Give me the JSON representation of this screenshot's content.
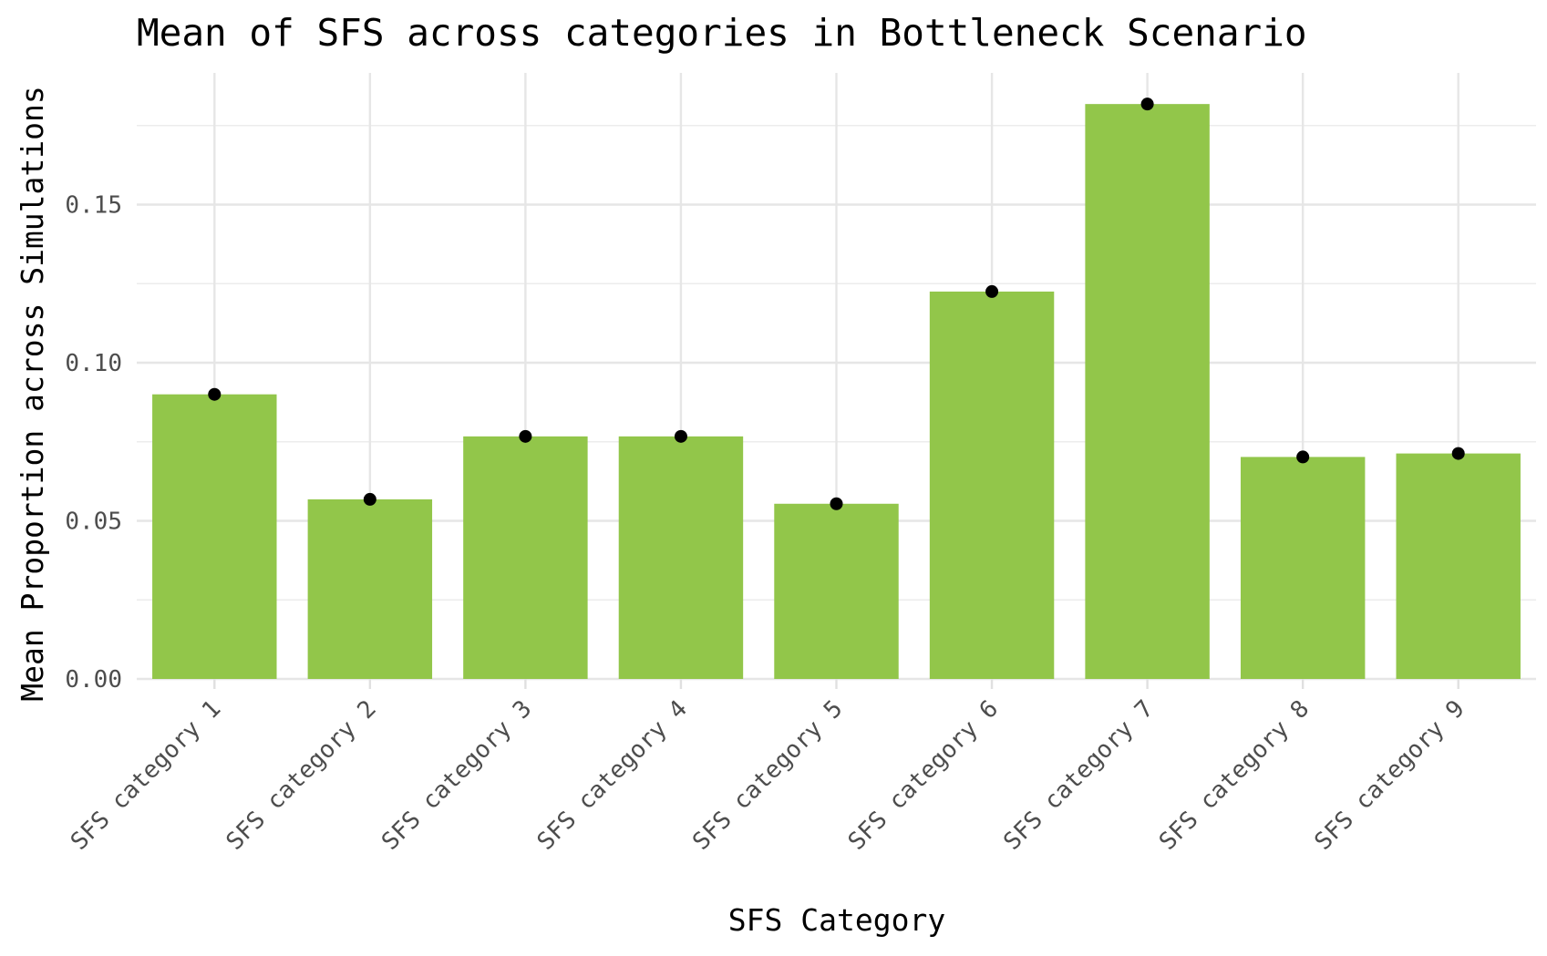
{
  "chart_data": {
    "type": "bar",
    "title": "Mean of SFS across categories in Bottleneck Scenario",
    "xlabel": "SFS Category",
    "ylabel": "Mean Proportion across Simulations",
    "categories": [
      "SFS category 1",
      "SFS category 2",
      "SFS category 3",
      "SFS category 4",
      "SFS category 5",
      "SFS category 6",
      "SFS category 7",
      "SFS category 8",
      "SFS category 9"
    ],
    "values": [
      0.09,
      0.0568,
      0.0767,
      0.0767,
      0.0554,
      0.1225,
      0.1818,
      0.0702,
      0.0713
    ],
    "ylim": [
      0,
      0.19
    ],
    "yticks": [
      0.0,
      0.05,
      0.1,
      0.15
    ],
    "ytick_labels": [
      "0.00",
      "0.05",
      "0.10",
      "0.15"
    ],
    "grid": true,
    "legend": "none",
    "bar_color": "#92c64a",
    "point_color": "#000000"
  }
}
